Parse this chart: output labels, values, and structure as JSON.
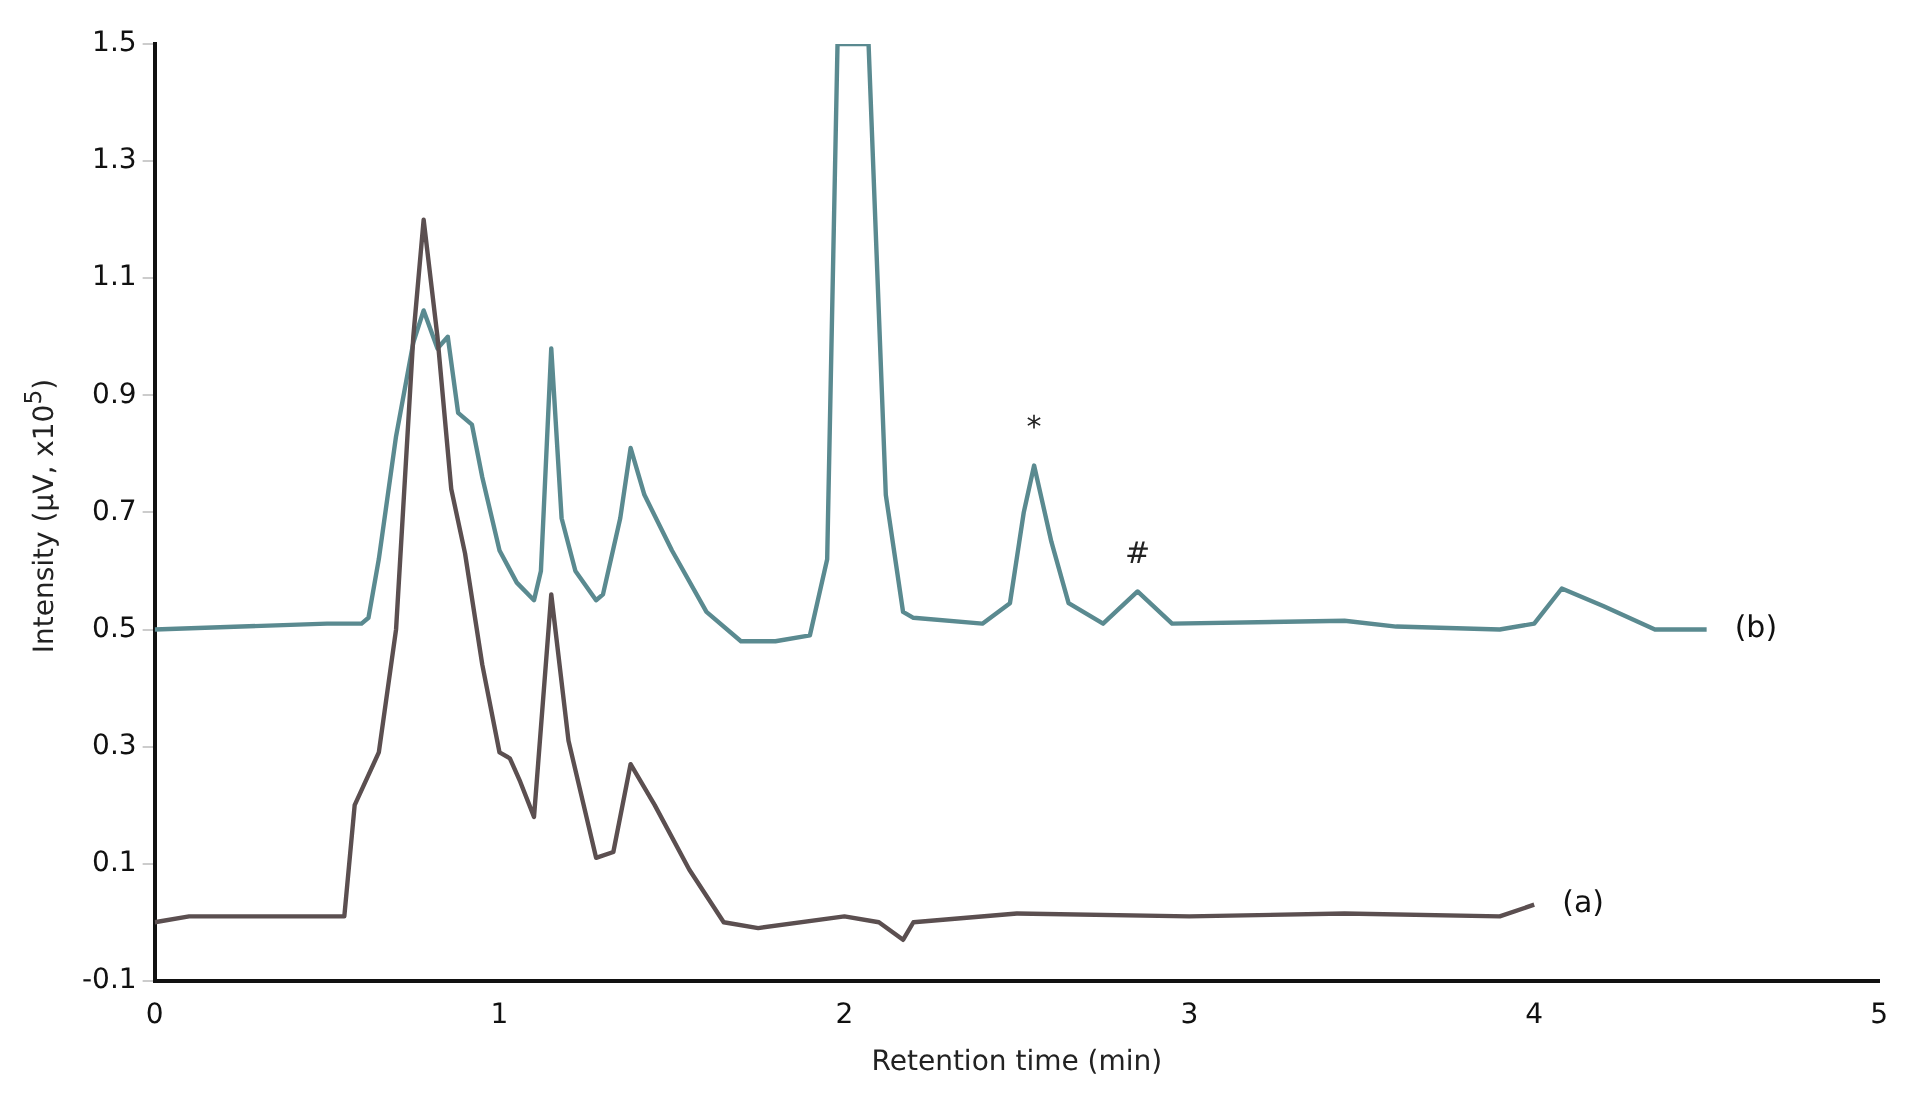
{
  "chart_data": {
    "type": "line",
    "xlabel": "Retention time (min)",
    "ylabel": "Intensity (µV, x10$^{5}$)",
    "xlim": [
      0,
      5
    ],
    "xticks": [
      0,
      1,
      2,
      3,
      4,
      5
    ],
    "ylim": [
      -0.1,
      1.5
    ],
    "yticks": [
      -0.1,
      0.1,
      0.3,
      0.5,
      0.7,
      0.9,
      1.1,
      1.3,
      1.5
    ],
    "grid": false,
    "legend": false,
    "marker": "none",
    "line_style": "solid",
    "annotations": [
      {
        "text": "*",
        "x": 2.55,
        "y": 0.78
      },
      {
        "text": "#",
        "x": 2.85,
        "y": 0.565
      }
    ],
    "series": [
      {
        "name": "(a)",
        "color": "#5b4f50",
        "x": [
          0,
          0.1,
          0.55,
          0.58,
          0.65,
          0.7,
          0.75,
          0.78,
          0.82,
          0.86,
          0.9,
          0.95,
          1.0,
          1.03,
          1.06,
          1.1,
          1.15,
          1.2,
          1.28,
          1.33,
          1.38,
          1.45,
          1.55,
          1.65,
          1.75,
          2.0,
          2.1,
          2.17,
          2.2,
          2.5,
          3.0,
          3.45,
          3.9,
          4.0
        ],
        "values": [
          0.0,
          0.01,
          0.01,
          0.2,
          0.29,
          0.5,
          1.0,
          1.2,
          1.0,
          0.74,
          0.63,
          0.44,
          0.29,
          0.28,
          0.24,
          0.18,
          0.56,
          0.31,
          0.11,
          0.12,
          0.27,
          0.2,
          0.09,
          0.0,
          -0.01,
          0.01,
          0.0,
          -0.03,
          0.0,
          0.015,
          0.01,
          0.015,
          0.01,
          0.03
        ]
      },
      {
        "name": "(b)",
        "color": "#5a8a90",
        "x": [
          0,
          0.5,
          0.6,
          0.62,
          0.65,
          0.7,
          0.75,
          0.78,
          0.82,
          0.85,
          0.88,
          0.92,
          0.95,
          1.0,
          1.05,
          1.1,
          1.12,
          1.15,
          1.18,
          1.22,
          1.28,
          1.3,
          1.35,
          1.38,
          1.42,
          1.5,
          1.6,
          1.7,
          1.8,
          1.9,
          1.95,
          1.98,
          2.07,
          2.12,
          2.17,
          2.2,
          2.4,
          2.48,
          2.52,
          2.55,
          2.6,
          2.65,
          2.75,
          2.85,
          2.95,
          3.45,
          3.6,
          3.9,
          4.0,
          4.08,
          4.2,
          4.35,
          4.5
        ],
        "values": [
          0.5,
          0.51,
          0.51,
          0.52,
          0.62,
          0.83,
          0.99,
          1.045,
          0.98,
          1.0,
          0.87,
          0.85,
          0.76,
          0.635,
          0.58,
          0.55,
          0.6,
          0.98,
          0.69,
          0.6,
          0.55,
          0.56,
          0.69,
          0.81,
          0.73,
          0.635,
          0.53,
          0.48,
          0.48,
          0.49,
          0.62,
          1.5,
          1.5,
          0.73,
          0.53,
          0.52,
          0.51,
          0.545,
          0.7,
          0.78,
          0.65,
          0.545,
          0.51,
          0.565,
          0.51,
          0.515,
          0.505,
          0.5,
          0.51,
          0.57,
          0.54,
          0.5,
          0.5
        ]
      }
    ]
  }
}
